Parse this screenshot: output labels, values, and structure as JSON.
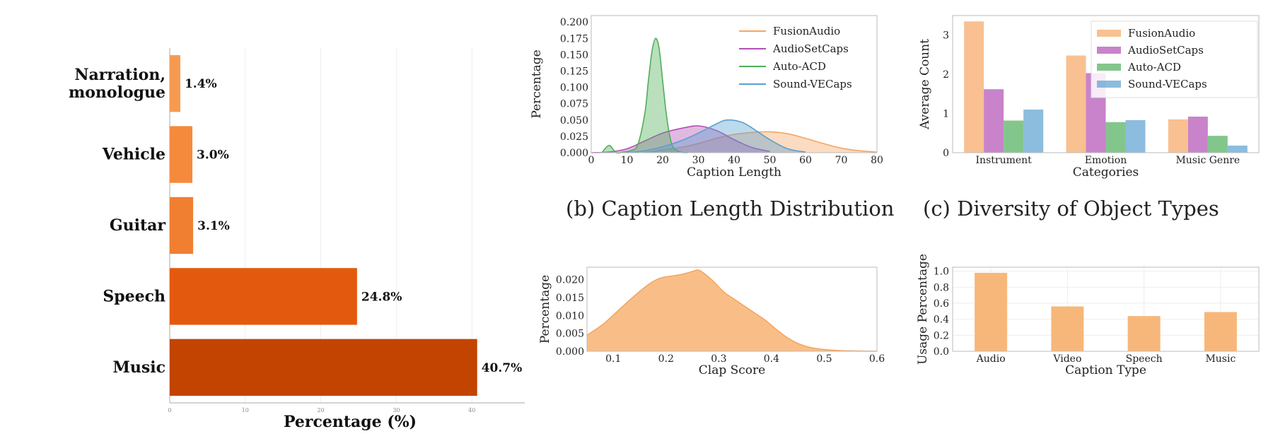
{
  "captions": {
    "b": "(b) Caption Length Distribution",
    "c": "(c) Diversity of Object Types"
  },
  "colors": {
    "FusionAudio": "#f6a563",
    "AudioSetCaps": "#b14fb5",
    "Auto-ACD": "#4fae5b",
    "Sound-VECaps": "#5b9fd0",
    "bars_a": [
      "#f79a50",
      "#f58a3c",
      "#f07f31",
      "#e35a0e",
      "#c24400"
    ],
    "single": "#f8b77a"
  },
  "chart_data": [
    {
      "id": "a",
      "type": "bar",
      "orientation": "horizontal",
      "categories": [
        "Narration,\nmonologue",
        "Vehicle",
        "Guitar",
        "Speech",
        "Music"
      ],
      "values": [
        1.4,
        3.0,
        3.1,
        24.8,
        40.7
      ],
      "data_labels": [
        "1.4%",
        "3.0%",
        "3.1%",
        "24.8%",
        "40.7%"
      ],
      "xlabel": "Percentage (%)",
      "xlim": [
        0,
        47
      ],
      "xticks": [
        0,
        10,
        20,
        30,
        40
      ],
      "grid": true
    },
    {
      "id": "b",
      "type": "area",
      "xlabel": "Caption Length",
      "ylabel": "Percentage",
      "xlim": [
        0,
        80
      ],
      "ylim": [
        0,
        0.21
      ],
      "xticks": [
        0,
        10,
        20,
        30,
        40,
        50,
        60,
        70,
        80
      ],
      "yticks": [
        "0.000",
        "0.025",
        "0.050",
        "0.075",
        "0.100",
        "0.125",
        "0.150",
        "0.175",
        "0.200"
      ],
      "legend_position": "top-right",
      "series": [
        {
          "name": "FusionAudio",
          "x": [
            15,
            20,
            25,
            30,
            35,
            40,
            45,
            50,
            55,
            60,
            65,
            70,
            75,
            80
          ],
          "y": [
            0.0,
            0.004,
            0.008,
            0.014,
            0.022,
            0.028,
            0.031,
            0.032,
            0.029,
            0.022,
            0.014,
            0.007,
            0.003,
            0.001
          ]
        },
        {
          "name": "AudioSetCaps",
          "x": [
            0,
            5,
            10,
            15,
            20,
            25,
            30,
            35,
            40,
            45,
            50
          ],
          "y": [
            0.0,
            0.001,
            0.006,
            0.018,
            0.03,
            0.037,
            0.041,
            0.034,
            0.02,
            0.008,
            0.002
          ]
        },
        {
          "name": "Auto-ACD",
          "x": [
            3,
            5,
            7,
            9,
            11,
            13,
            15,
            16,
            17,
            18,
            19,
            20,
            21,
            22,
            23,
            25,
            27
          ],
          "y": [
            0.0,
            0.011,
            0.0,
            0.001,
            0.003,
            0.012,
            0.06,
            0.11,
            0.155,
            0.175,
            0.16,
            0.11,
            0.06,
            0.025,
            0.008,
            0.001,
            0.0
          ]
        },
        {
          "name": "Sound-VECaps",
          "x": [
            10,
            15,
            20,
            25,
            30,
            35,
            38,
            42,
            45,
            50,
            55,
            60
          ],
          "y": [
            0.0,
            0.003,
            0.009,
            0.018,
            0.03,
            0.044,
            0.05,
            0.047,
            0.038,
            0.02,
            0.006,
            0.001
          ]
        }
      ]
    },
    {
      "id": "c",
      "type": "bar",
      "xlabel": "Categories",
      "ylabel": "Average Count",
      "categories": [
        "Instrument",
        "Emotion",
        "Music Genre"
      ],
      "ylim": [
        0,
        3.5
      ],
      "yticks": [
        0,
        1,
        2,
        3
      ],
      "legend_position": "top-right",
      "series": [
        {
          "name": "FusionAudio",
          "values": [
            3.35,
            2.48,
            0.85
          ]
        },
        {
          "name": "AudioSetCaps",
          "values": [
            1.62,
            2.03,
            0.92
          ]
        },
        {
          "name": "Auto-ACD",
          "values": [
            0.82,
            0.78,
            0.43
          ]
        },
        {
          "name": "Sound-VECaps",
          "values": [
            1.1,
            0.83,
            0.18
          ]
        }
      ]
    },
    {
      "id": "d",
      "type": "area",
      "xlabel": "Clap Score",
      "ylabel": "Percentage",
      "xlim": [
        0.05,
        0.6
      ],
      "ylim": [
        0,
        0.0235
      ],
      "xticks": [
        0.1,
        0.2,
        0.3,
        0.4,
        0.5,
        0.6
      ],
      "yticks": [
        "0.000",
        "0.005",
        "0.010",
        "0.015",
        "0.020"
      ],
      "series": [
        {
          "x": [
            0.05,
            0.08,
            0.11,
            0.14,
            0.17,
            0.19,
            0.21,
            0.23,
            0.25,
            0.26,
            0.27,
            0.29,
            0.31,
            0.33,
            0.35,
            0.37,
            0.39,
            0.41,
            0.43,
            0.45,
            0.47,
            0.5,
            0.53,
            0.56,
            0.6
          ],
          "y": [
            0.0045,
            0.0075,
            0.0115,
            0.0155,
            0.019,
            0.0205,
            0.021,
            0.0215,
            0.0223,
            0.0227,
            0.022,
            0.0195,
            0.0165,
            0.0145,
            0.0125,
            0.0105,
            0.0085,
            0.006,
            0.0038,
            0.0022,
            0.0012,
            0.0005,
            0.0002,
            0.0001,
            0.0
          ]
        }
      ]
    },
    {
      "id": "e",
      "type": "bar",
      "xlabel": "Caption Type",
      "ylabel": "Usage Percentage",
      "categories": [
        "Audio",
        "Video",
        "Speech",
        "Music"
      ],
      "values": [
        0.98,
        0.56,
        0.44,
        0.49
      ],
      "ylim": [
        0,
        1.05
      ],
      "yticks": [
        "0.0",
        "0.2",
        "0.4",
        "0.6",
        "0.8",
        "1.0"
      ],
      "grid": true
    }
  ]
}
